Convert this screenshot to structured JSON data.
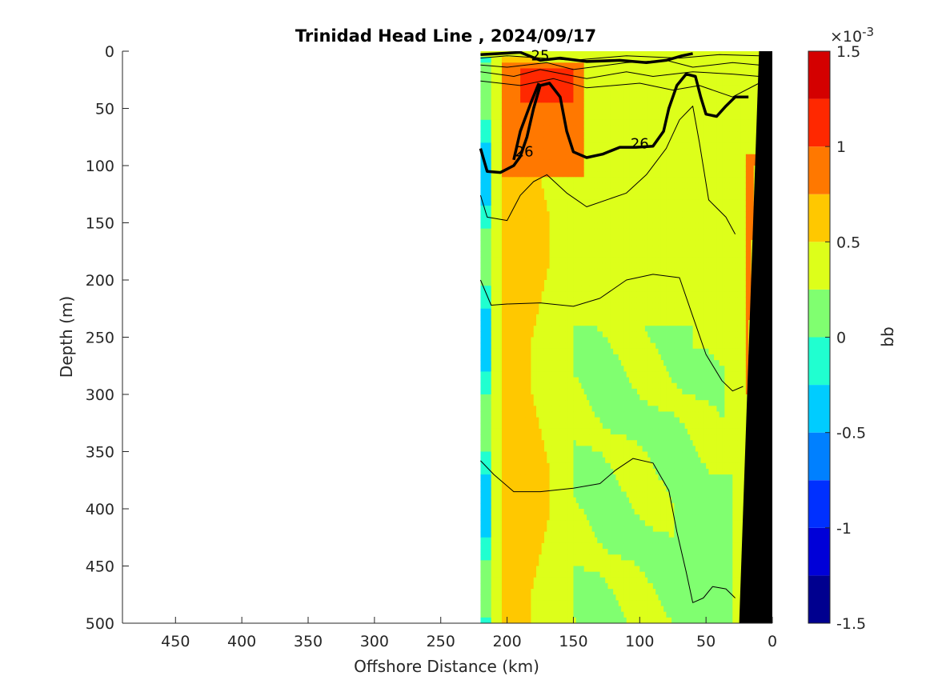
{
  "chart_data": {
    "type": "heatmap",
    "title": "Trinidad Head Line , 2024/09/17",
    "xlabel": "Offshore Distance (km)",
    "ylabel": "Depth (m)",
    "xlim": [
      490,
      0
    ],
    "ylim": [
      0,
      500
    ],
    "x_ticks": [
      "450",
      "400",
      "350",
      "300",
      "250",
      "200",
      "150",
      "100",
      "50",
      "0"
    ],
    "x_tick_values": [
      450,
      400,
      350,
      300,
      250,
      200,
      150,
      100,
      50,
      0
    ],
    "y_ticks": [
      "0",
      "50",
      "100",
      "150",
      "200",
      "250",
      "300",
      "350",
      "400",
      "450",
      "500"
    ],
    "y_tick_values": [
      0,
      50,
      100,
      150,
      200,
      250,
      300,
      350,
      400,
      450,
      500
    ],
    "data_extent_km": [
      220,
      0
    ],
    "colorbar": {
      "label": "bb",
      "exponent": "×10",
      "exponent_power": "-3",
      "range": [
        -1.5,
        1.5
      ],
      "tick_labels": [
        "1.5",
        "1",
        "0.5",
        "0",
        "-0.5",
        "-1",
        "-1.5"
      ],
      "tick_values": [
        1.5,
        1,
        0.5,
        0,
        -0.5,
        -1,
        -1.5
      ],
      "levels": [
        -1.5,
        -1.25,
        -1.0,
        -0.75,
        -0.5,
        -0.25,
        0,
        0.25,
        0.5,
        0.75,
        1.0,
        1.25,
        1.5
      ],
      "colors": [
        "#00008f",
        "#0000d8",
        "#0030ff",
        "#0080ff",
        "#00ccff",
        "#20ffd0",
        "#80ff70",
        "#ddff1a",
        "#ffc800",
        "#ff7800",
        "#ff2800",
        "#d40000"
      ]
    },
    "contour_labels": [
      {
        "text": "25",
        "x": 175,
        "y": 8
      },
      {
        "text": "26",
        "x": 187,
        "y": 92
      },
      {
        "text": "26",
        "x": 100,
        "y": 85
      }
    ],
    "bathymetry_color": "#000000",
    "field_approx": [
      {
        "x_range": [
          220,
          212
        ],
        "depth_range": [
          0,
          500
        ],
        "bb": -0.1,
        "note": "cyan-green nearshore edge of data"
      },
      {
        "x_range": [
          212,
          175
        ],
        "depth_range": [
          0,
          500
        ],
        "bb": 0.55
      },
      {
        "x_range": [
          200,
          150
        ],
        "depth_range": [
          10,
          110
        ],
        "bb": 0.85
      },
      {
        "x_range": [
          185,
          145
        ],
        "depth_range": [
          15,
          40
        ],
        "bb": 1.1
      },
      {
        "x_range": [
          175,
          0
        ],
        "depth_range": [
          0,
          500
        ],
        "bb": 0.4
      },
      {
        "x_range": [
          150,
          40
        ],
        "depth_range": [
          250,
          500
        ],
        "bb": 0.15
      },
      {
        "x_range": [
          20,
          10
        ],
        "depth_range": [
          100,
          300
        ],
        "bb": 0.8
      }
    ]
  }
}
